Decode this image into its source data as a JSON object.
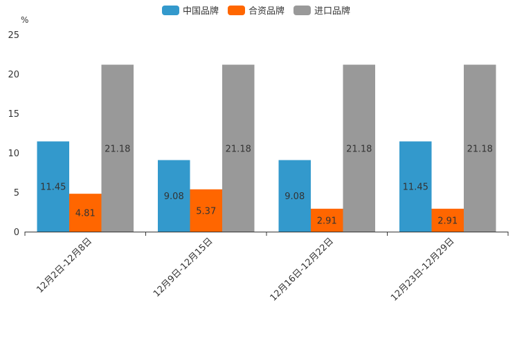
{
  "chart_data": {
    "type": "bar",
    "title": "",
    "ylabel": "%",
    "xlabel": "",
    "ylim": [
      0,
      25
    ],
    "yticks": [
      0,
      5,
      10,
      15,
      20,
      25
    ],
    "categories": [
      "12月2日-12月8日",
      "12月9日-12月15日",
      "12月16日-12月22日",
      "12月23日-12月29日"
    ],
    "series": [
      {
        "name": "中国品牌",
        "color": "#3399cc",
        "values": [
          11.45,
          9.08,
          9.08,
          11.45
        ]
      },
      {
        "name": "合资品牌",
        "color": "#ff6600",
        "values": [
          4.81,
          5.37,
          2.91,
          2.91
        ]
      },
      {
        "name": "进口品牌",
        "color": "#999999",
        "values": [
          21.18,
          21.18,
          21.18,
          21.18
        ]
      }
    ],
    "legend_position": "top-center",
    "grid": false
  }
}
